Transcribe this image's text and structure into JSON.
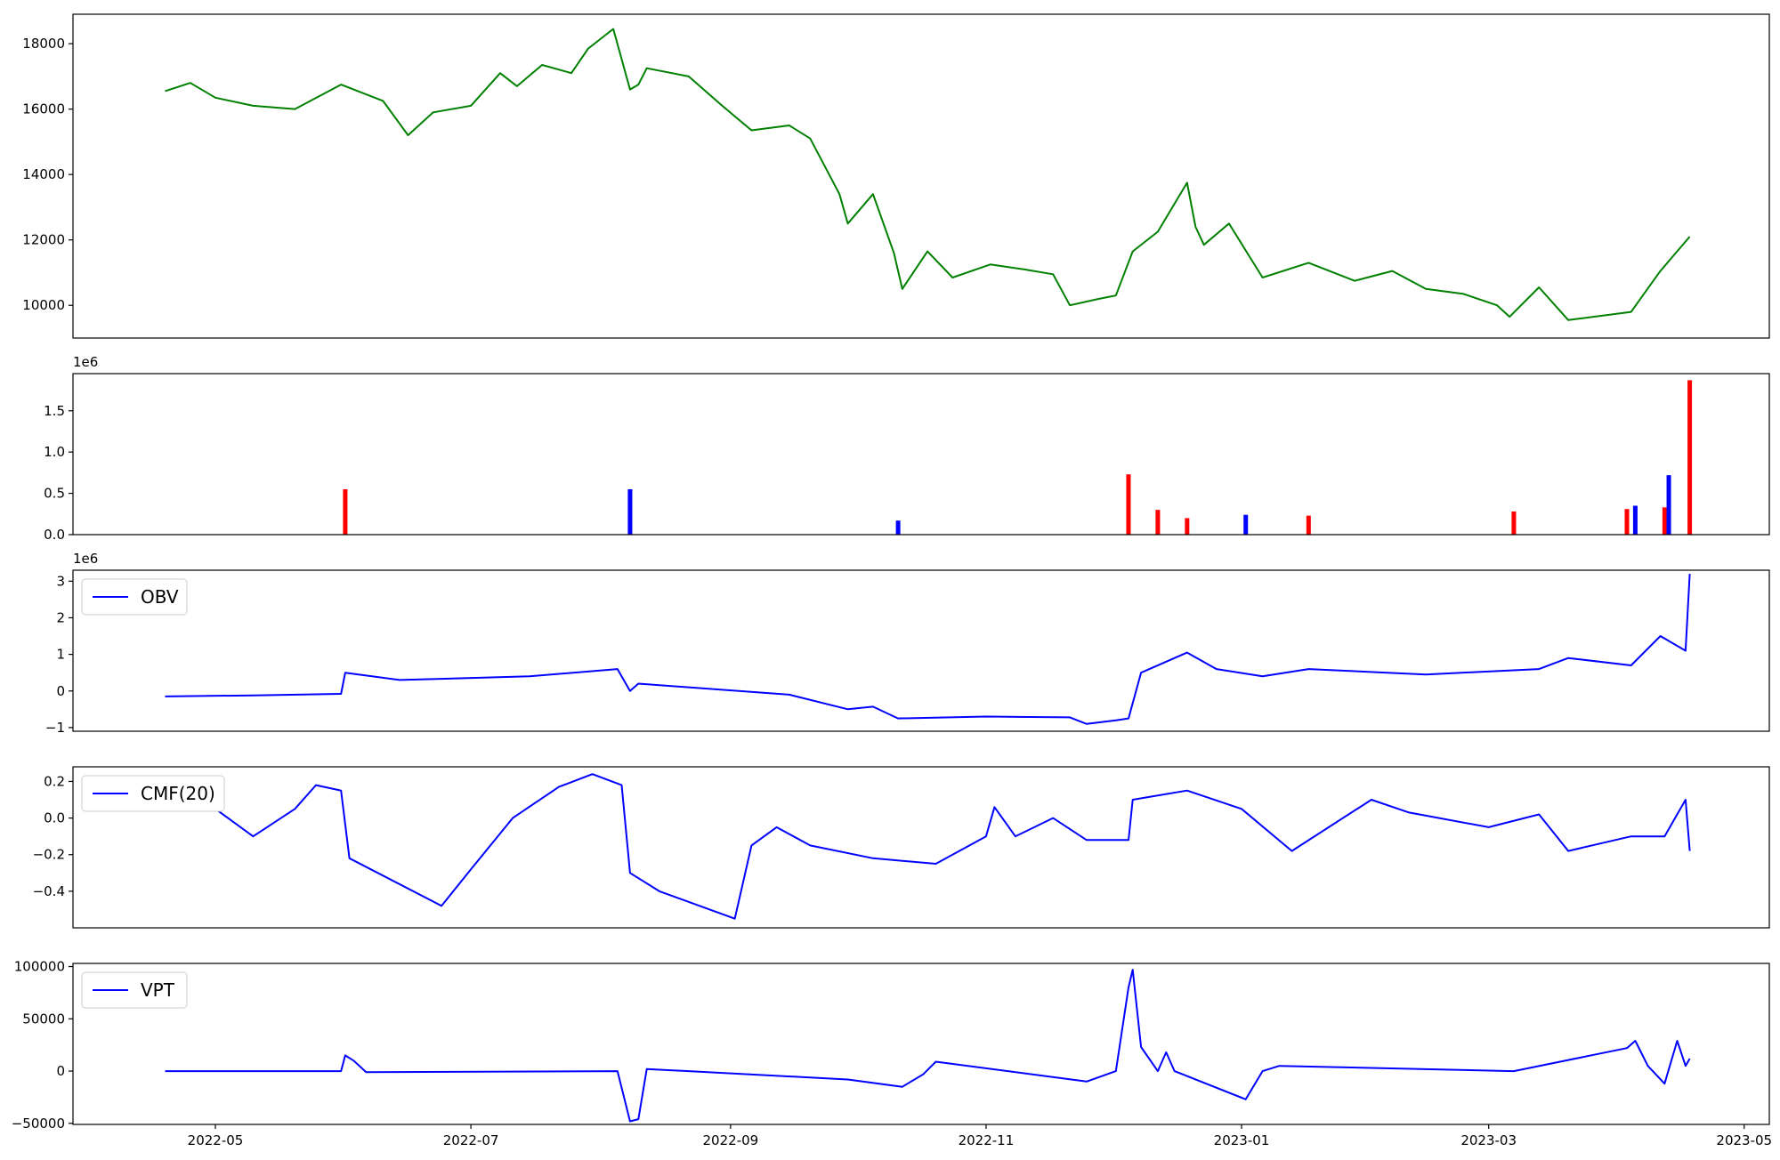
{
  "chart_data": [
    {
      "type": "line",
      "title": "",
      "series": [
        {
          "color": "#008000"
        }
      ],
      "ylim": [
        9000,
        18900
      ],
      "yticks": [
        10000,
        12000,
        14000,
        16000,
        18000
      ],
      "yticklabels": [
        "10000",
        "12000",
        "14000",
        "16000",
        "18000"
      ],
      "x": [
        "2022-04-19",
        "2022-04-25",
        "2022-05-01",
        "2022-05-10",
        "2022-05-20",
        "2022-05-31",
        "2022-06-10",
        "2022-06-16",
        "2022-06-22",
        "2022-07-01",
        "2022-07-08",
        "2022-07-12",
        "2022-07-18",
        "2022-07-25",
        "2022-07-29",
        "2022-08-04",
        "2022-08-08",
        "2022-08-10",
        "2022-08-12",
        "2022-08-22",
        "2022-08-30",
        "2022-09-06",
        "2022-09-15",
        "2022-09-20",
        "2022-09-27",
        "2022-09-29",
        "2022-10-05",
        "2022-10-10",
        "2022-10-12",
        "2022-10-18",
        "2022-10-24",
        "2022-11-02",
        "2022-11-10",
        "2022-11-17",
        "2022-11-21",
        "2022-11-28",
        "2022-12-02",
        "2022-12-06",
        "2022-12-12",
        "2022-12-19",
        "2022-12-21",
        "2022-12-23",
        "2022-12-29",
        "2023-01-06",
        "2023-01-17",
        "2023-01-28",
        "2023-02-06",
        "2023-02-14",
        "2023-02-23",
        "2023-03-03",
        "2023-03-06",
        "2023-03-13",
        "2023-03-20",
        "2023-04-04",
        "2023-04-11",
        "2023-04-18"
      ],
      "y": [
        16550,
        16800,
        16350,
        16100,
        16000,
        16750,
        16250,
        15200,
        15900,
        16100,
        17100,
        16700,
        17350,
        17100,
        17850,
        18450,
        16600,
        16750,
        17250,
        17000,
        16100,
        15350,
        15500,
        15100,
        13400,
        12500,
        13400,
        11600,
        10500,
        11650,
        10850,
        11250,
        11100,
        10950,
        10000,
        10200,
        10300,
        11650,
        12250,
        13750,
        12400,
        11850,
        12500,
        10850,
        11300,
        10750,
        11050,
        10500,
        10350,
        10000,
        9650,
        10550,
        9550,
        9800,
        11050,
        12100
      ],
      "xlabel": "",
      "ylabel": ""
    },
    {
      "type": "bar",
      "title": "",
      "offset_label": "1e6",
      "ylim": [
        0,
        1950000
      ],
      "yticks": [
        0,
        500000,
        1000000,
        1500000
      ],
      "yticklabels": [
        "0.0",
        "0.5",
        "1.0",
        "1.5"
      ],
      "bar_colors": {
        "up": "#0000ff",
        "down": "#ff0000",
        "flat": "#000000"
      },
      "x": [
        "2022-06-01",
        "2022-08-08",
        "2022-10-11",
        "2022-12-05",
        "2022-12-12",
        "2022-12-19",
        "2023-01-02",
        "2023-01-17",
        "2023-03-07",
        "2023-04-03",
        "2023-04-05",
        "2023-04-12",
        "2023-04-13",
        "2023-04-18"
      ],
      "values": [
        550000,
        550000,
        170000,
        730000,
        300000,
        200000,
        240000,
        230000,
        280000,
        310000,
        350000,
        330000,
        720000,
        1870000
      ],
      "colors": [
        "down",
        "up",
        "up",
        "down",
        "down",
        "down",
        "up",
        "down",
        "down",
        "down",
        "up",
        "down",
        "up",
        "down"
      ],
      "xlabel": "",
      "ylabel": ""
    },
    {
      "type": "line",
      "title": "",
      "offset_label": "1e6",
      "series": [
        {
          "name": "OBV",
          "color": "#0000ff"
        }
      ],
      "legend": "upper left",
      "ylim": [
        -1100000,
        3300000
      ],
      "yticks": [
        -1000000,
        0,
        1000000,
        2000000,
        3000000
      ],
      "yticklabels": [
        "−1",
        "0",
        "1",
        "2",
        "3"
      ],
      "x": [
        "2022-04-19",
        "2022-05-10",
        "2022-05-31",
        "2022-06-01",
        "2022-06-14",
        "2022-07-15",
        "2022-08-05",
        "2022-08-08",
        "2022-08-10",
        "2022-08-22",
        "2022-09-15",
        "2022-09-29",
        "2022-10-05",
        "2022-10-11",
        "2022-11-01",
        "2022-11-21",
        "2022-11-25",
        "2022-12-02",
        "2022-12-05",
        "2022-12-08",
        "2022-12-19",
        "2022-12-26",
        "2023-01-06",
        "2023-01-17",
        "2023-02-14",
        "2023-03-13",
        "2023-03-20",
        "2023-04-04",
        "2023-04-11",
        "2023-04-17",
        "2023-04-18"
      ],
      "y": [
        -150000,
        -120000,
        -80000,
        500000,
        300000,
        400000,
        600000,
        0,
        200000,
        100000,
        -100000,
        -500000,
        -430000,
        -750000,
        -700000,
        -720000,
        -900000,
        -800000,
        -750000,
        500000,
        1050000,
        600000,
        400000,
        600000,
        450000,
        600000,
        900000,
        700000,
        1500000,
        1100000,
        3200000
      ],
      "xlabel": "",
      "ylabel": ""
    },
    {
      "type": "line",
      "title": "",
      "series": [
        {
          "name": "CMF(20)",
          "color": "#0000ff"
        }
      ],
      "legend": "upper left",
      "ylim": [
        -0.6,
        0.28
      ],
      "yticks": [
        -0.4,
        -0.2,
        0.0,
        0.2
      ],
      "yticklabels": [
        "−0.4",
        "−0.2",
        "0.0",
        "0.2"
      ],
      "x": [
        "2022-04-19",
        "2022-04-28",
        "2022-05-10",
        "2022-05-20",
        "2022-05-25",
        "2022-05-31",
        "2022-06-02",
        "2022-06-24",
        "2022-07-01",
        "2022-07-11",
        "2022-07-22",
        "2022-07-30",
        "2022-08-06",
        "2022-08-08",
        "2022-08-15",
        "2022-09-02",
        "2022-09-06",
        "2022-09-12",
        "2022-09-20",
        "2022-10-05",
        "2022-10-20",
        "2022-11-01",
        "2022-11-03",
        "2022-11-08",
        "2022-11-17",
        "2022-11-25",
        "2022-12-05",
        "2022-12-06",
        "2022-12-19",
        "2023-01-01",
        "2023-01-13",
        "2023-02-01",
        "2023-02-10",
        "2023-03-01",
        "2023-03-13",
        "2023-03-20",
        "2023-04-04",
        "2023-04-12",
        "2023-04-17",
        "2023-04-18"
      ],
      "y": [
        0.07,
        0.1,
        -0.1,
        0.05,
        0.18,
        0.15,
        -0.22,
        -0.48,
        -0.28,
        0.0,
        0.17,
        0.24,
        0.18,
        -0.3,
        -0.4,
        -0.55,
        -0.15,
        -0.05,
        -0.15,
        -0.22,
        -0.25,
        -0.1,
        0.06,
        -0.1,
        0.0,
        -0.12,
        -0.12,
        0.1,
        0.15,
        0.05,
        -0.18,
        0.1,
        0.03,
        -0.05,
        0.02,
        -0.18,
        -0.1,
        -0.1,
        0.1,
        -0.18
      ],
      "xlabel": "",
      "ylabel": ""
    },
    {
      "type": "line",
      "title": "",
      "series": [
        {
          "name": "VPT",
          "color": "#0000ff"
        }
      ],
      "legend": "upper left",
      "ylim": [
        -51000,
        103000
      ],
      "yticks": [
        -50000,
        0,
        50000,
        100000
      ],
      "yticklabels": [
        "−50000",
        "0",
        "50000",
        "100000"
      ],
      "x": [
        "2022-04-19",
        "2022-05-31",
        "2022-06-01",
        "2022-06-03",
        "2022-06-06",
        "2022-08-05",
        "2022-08-08",
        "2022-08-10",
        "2022-08-12",
        "2022-09-29",
        "2022-10-12",
        "2022-10-17",
        "2022-10-20",
        "2022-11-25",
        "2022-12-02",
        "2022-12-05",
        "2022-12-06",
        "2022-12-08",
        "2022-12-12",
        "2022-12-14",
        "2022-12-16",
        "2023-01-02",
        "2023-01-06",
        "2023-01-10",
        "2023-03-07",
        "2023-04-03",
        "2023-04-05",
        "2023-04-08",
        "2023-04-12",
        "2023-04-15",
        "2023-04-17",
        "2023-04-18"
      ],
      "y": [
        0,
        0,
        15000,
        10000,
        -1000,
        0,
        -48000,
        -46000,
        2000,
        -8000,
        -15000,
        -3000,
        9000,
        -10000,
        0,
        80000,
        97000,
        23000,
        0,
        18000,
        0,
        -27000,
        0,
        5000,
        0,
        22000,
        29000,
        5000,
        -12000,
        29000,
        5000,
        12000
      ],
      "xlabel": "",
      "ylabel": ""
    }
  ],
  "xaxis": {
    "ticks": [
      "2022-05-01",
      "2022-07-01",
      "2022-09-01",
      "2022-11-01",
      "2023-01-01",
      "2023-03-01",
      "2023-05-01"
    ],
    "ticklabels": [
      "2022-05",
      "2022-07",
      "2022-09",
      "2022-11",
      "2023-01",
      "2023-03",
      "2023-05"
    ],
    "range": [
      "2022-03-28",
      "2023-05-07"
    ]
  }
}
